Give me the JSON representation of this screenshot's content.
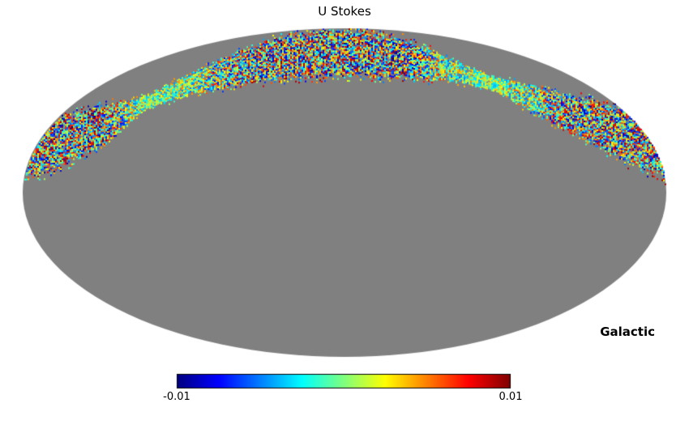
{
  "figure": {
    "title": "U Stokes",
    "coordinate_label": "Galactic",
    "background_color": "#ffffff"
  },
  "colorbar": {
    "min_label": "-0.01",
    "max_label": "0.01",
    "colormap": "jet"
  },
  "chart_data": {
    "type": "heatmap",
    "title": "U Stokes",
    "projection": "mollweide",
    "coordinate_system": "Galactic",
    "colormap": "jet",
    "value_range": [
      -0.01,
      0.01
    ],
    "colorbar_ticks": [
      "-0.01",
      "0.01"
    ],
    "unobserved_color": "#808080",
    "observed_region": "narrow sinusoidal scan band across the top half of the sky filled with full-range random noise; rest of sky unobserved (gray)",
    "band_profile": [
      {
        "t": -1.0,
        "center": 0.271,
        "halfwidth": 0.167
      },
      {
        "t": -0.87,
        "center": 0.325,
        "halfwidth": 0.148
      },
      {
        "t": -0.74,
        "center": 0.424,
        "halfwidth": 0.108
      },
      {
        "t": -0.62,
        "center": 0.552,
        "halfwidth": 0.039
      },
      {
        "t": -0.5,
        "center": 0.65,
        "halfwidth": 0.059
      },
      {
        "t": -0.35,
        "center": 0.749,
        "halfwidth": 0.094
      },
      {
        "t": -0.2,
        "center": 0.823,
        "halfwidth": 0.123
      },
      {
        "t": -0.05,
        "center": 0.857,
        "halfwidth": 0.138
      },
      {
        "t": 0.05,
        "center": 0.857,
        "halfwidth": 0.133
      },
      {
        "t": 0.2,
        "center": 0.813,
        "halfwidth": 0.108
      },
      {
        "t": 0.33,
        "center": 0.749,
        "halfwidth": 0.064
      },
      {
        "t": 0.45,
        "center": 0.675,
        "halfwidth": 0.039
      },
      {
        "t": 0.58,
        "center": 0.576,
        "halfwidth": 0.074
      },
      {
        "t": 0.72,
        "center": 0.468,
        "halfwidth": 0.108
      },
      {
        "t": 0.86,
        "center": 0.365,
        "halfwidth": 0.148
      },
      {
        "t": 1.0,
        "center": 0.271,
        "halfwidth": 0.167
      }
    ]
  }
}
